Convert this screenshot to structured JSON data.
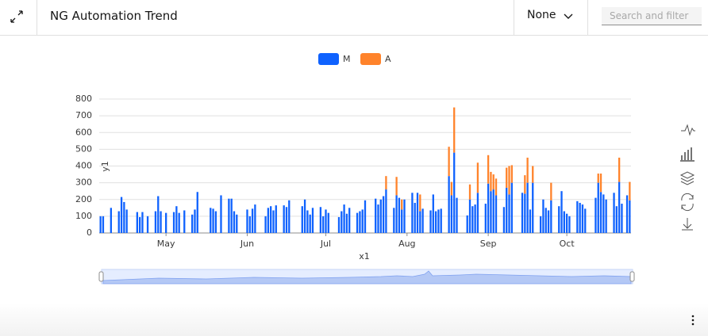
{
  "header": {
    "title": "NG Automation Trend",
    "dropdown": "None",
    "search_placeholder": "Search and filter"
  },
  "chart_data": {
    "type": "bar",
    "stacked": true,
    "x_label": "x1",
    "y_label": "y1",
    "categories": [
      null,
      null,
      null,
      null,
      null,
      null,
      null,
      null,
      null,
      null,
      null,
      null,
      null,
      null,
      null,
      null,
      null,
      null,
      null,
      null,
      null,
      null,
      null,
      null,
      null,
      "May",
      null,
      null,
      null,
      null,
      null,
      null,
      null,
      null,
      null,
      null,
      null,
      null,
      null,
      null,
      null,
      null,
      null,
      null,
      null,
      null,
      null,
      null,
      null,
      null,
      null,
      null,
      null,
      null,
      null,
      null,
      "Jun",
      null,
      null,
      null,
      null,
      null,
      null,
      null,
      null,
      null,
      null,
      null,
      null,
      null,
      null,
      null,
      null,
      null,
      null,
      null,
      null,
      null,
      null,
      null,
      null,
      null,
      null,
      null,
      null,
      null,
      "Jul",
      null,
      null,
      null,
      null,
      null,
      null,
      null,
      null,
      null,
      null,
      null,
      null,
      null,
      null,
      null,
      null,
      null,
      null,
      null,
      null,
      null,
      null,
      null,
      null,
      null,
      null,
      null,
      null,
      null,
      null,
      "Aug",
      null,
      null,
      null,
      null,
      null,
      null,
      null,
      null,
      null,
      null,
      null,
      null,
      null,
      null,
      null,
      null,
      null,
      null,
      null,
      null,
      null,
      null,
      null,
      null,
      null,
      null,
      null,
      null,
      null,
      null,
      "Sep",
      null,
      null,
      null,
      null,
      null,
      null,
      null,
      null,
      null,
      null,
      null,
      null,
      null,
      null,
      null,
      null,
      null,
      null,
      null,
      null,
      null,
      null,
      null,
      null,
      null,
      null,
      null,
      null,
      null,
      "Oct",
      null,
      null,
      null,
      null,
      null,
      null,
      null,
      null,
      null,
      null,
      null,
      null,
      null,
      null,
      null,
      null,
      null,
      null,
      null,
      null,
      null,
      null,
      null,
      null
    ],
    "series": [
      {
        "name": "M",
        "color": "#0f62fe",
        "values": [
          100,
          100,
          null,
          null,
          150,
          null,
          null,
          130,
          215,
          185,
          140,
          null,
          null,
          null,
          125,
          95,
          125,
          null,
          100,
          null,
          null,
          130,
          220,
          130,
          null,
          120,
          null,
          null,
          125,
          160,
          120,
          null,
          135,
          null,
          null,
          110,
          140,
          245,
          null,
          null,
          null,
          null,
          150,
          145,
          130,
          null,
          225,
          null,
          null,
          205,
          205,
          130,
          110,
          null,
          null,
          null,
          140,
          100,
          145,
          170,
          null,
          null,
          null,
          100,
          150,
          160,
          135,
          165,
          null,
          null,
          165,
          155,
          195,
          null,
          null,
          null,
          null,
          160,
          200,
          135,
          110,
          150,
          null,
          null,
          155,
          100,
          140,
          120,
          null,
          null,
          null,
          95,
          130,
          170,
          115,
          150,
          null,
          null,
          120,
          130,
          140,
          195,
          null,
          null,
          null,
          205,
          170,
          200,
          220,
          260,
          null,
          null,
          150,
          225,
          210,
          140,
          200,
          null,
          null,
          240,
          180,
          240,
          130,
          145,
          null,
          null,
          135,
          230,
          130,
          140,
          145,
          null,
          null,
          340,
          225,
          480,
          210,
          null,
          null,
          null,
          105,
          200,
          160,
          170,
          240,
          null,
          null,
          175,
          295,
          250,
          260,
          225,
          null,
          null,
          155,
          270,
          230,
          300,
          null,
          null,
          null,
          240,
          235,
          300,
          140,
          300,
          null,
          null,
          100,
          200,
          150,
          135,
          195,
          null,
          null,
          160,
          250,
          130,
          115,
          100,
          null,
          null,
          190,
          180,
          170,
          145,
          null,
          null,
          null,
          210,
          300,
          245,
          230,
          200,
          null,
          null,
          240,
          160,
          305,
          175,
          null,
          225,
          195
        ]
      },
      {
        "name": "A",
        "color": "#ff832b",
        "values": [
          0,
          0,
          null,
          null,
          0,
          null,
          null,
          0,
          0,
          0,
          0,
          null,
          null,
          null,
          0,
          0,
          0,
          null,
          0,
          null,
          null,
          0,
          0,
          0,
          null,
          0,
          null,
          null,
          0,
          0,
          0,
          null,
          0,
          null,
          null,
          0,
          0,
          0,
          null,
          null,
          null,
          null,
          0,
          0,
          0,
          null,
          0,
          null,
          null,
          0,
          0,
          0,
          0,
          null,
          null,
          null,
          0,
          0,
          0,
          0,
          null,
          null,
          null,
          0,
          0,
          0,
          0,
          0,
          null,
          null,
          0,
          0,
          0,
          null,
          null,
          null,
          null,
          0,
          0,
          0,
          0,
          0,
          null,
          null,
          0,
          0,
          0,
          0,
          null,
          null,
          null,
          0,
          0,
          0,
          0,
          0,
          null,
          null,
          0,
          0,
          0,
          0,
          null,
          null,
          null,
          0,
          0,
          0,
          0,
          80,
          null,
          null,
          0,
          110,
          0,
          60,
          0,
          null,
          null,
          0,
          0,
          0,
          100,
          0,
          null,
          null,
          0,
          0,
          0,
          0,
          0,
          null,
          null,
          175,
          80,
          270,
          0,
          null,
          null,
          null,
          0,
          90,
          0,
          0,
          180,
          null,
          null,
          0,
          170,
          115,
          90,
          100,
          null,
          null,
          0,
          120,
          170,
          105,
          null,
          null,
          null,
          0,
          110,
          150,
          0,
          100,
          null,
          null,
          0,
          0,
          0,
          0,
          105,
          null,
          null,
          0,
          0,
          0,
          0,
          0,
          null,
          null,
          0,
          0,
          0,
          0,
          null,
          null,
          null,
          0,
          55,
          110,
          0,
          0,
          null,
          null,
          0,
          0,
          145,
          0,
          null,
          0,
          110
        ]
      }
    ],
    "ylim": [
      0,
      800
    ],
    "yticks": [
      0,
      100,
      200,
      300,
      400,
      500,
      600,
      700,
      800
    ],
    "grid": true
  }
}
